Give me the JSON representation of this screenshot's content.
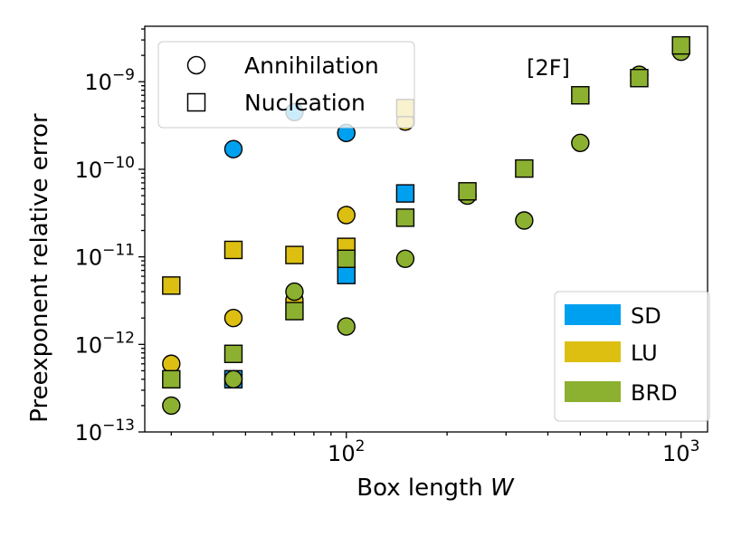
{
  "chart_data": {
    "type": "scatter",
    "title": "",
    "annotation": "[2F]",
    "xlabel": "Box length ",
    "xlabel_var": "W",
    "ylabel": "Preexponent relative error",
    "xscale": "log",
    "yscale": "log",
    "xlim": [
      25,
      1200
    ],
    "ylim": [
      1e-13,
      4.3e-09
    ],
    "x_ticks": [
      {
        "value": 100,
        "base": "10",
        "exp": "2"
      },
      {
        "value": 1000,
        "base": "10",
        "exp": "3"
      }
    ],
    "y_ticks": [
      {
        "value": 1e-13,
        "base": "10",
        "exp": "−13"
      },
      {
        "value": 1e-12,
        "base": "10",
        "exp": "−12"
      },
      {
        "value": 1e-11,
        "base": "10",
        "exp": "−11"
      },
      {
        "value": 1e-10,
        "base": "10",
        "exp": "−10"
      },
      {
        "value": 1e-09,
        "base": "10",
        "exp": "−9"
      }
    ],
    "marker_legend": [
      {
        "label": "Annihilation",
        "marker": "circle"
      },
      {
        "label": "Nucleation",
        "marker": "square"
      }
    ],
    "color_legend": [
      {
        "label": "SD",
        "color": "#00A0F0"
      },
      {
        "label": "LU",
        "color": "#DDBF12"
      },
      {
        "label": "BRD",
        "color": "#8CB030"
      }
    ],
    "series": [
      {
        "name": "SD",
        "color": "#00A0F0",
        "annihilation": [
          {
            "x": 46,
            "y": 1.7e-10
          },
          {
            "x": 70,
            "y": 4.5e-10
          },
          {
            "x": 100,
            "y": 2.6e-10
          }
        ],
        "nucleation": [
          {
            "x": 46,
            "y": 4e-13
          },
          {
            "x": 100,
            "y": 6.2e-12
          },
          {
            "x": 150,
            "y": 5.3e-11
          }
        ]
      },
      {
        "name": "LU",
        "color": "#DDBF12",
        "annihilation": [
          {
            "x": 30,
            "y": 6e-13
          },
          {
            "x": 46,
            "y": 2e-12
          },
          {
            "x": 70,
            "y": 3.2e-12
          },
          {
            "x": 100,
            "y": 3e-11
          },
          {
            "x": 150,
            "y": 3.5e-10
          }
        ],
        "nucleation": [
          {
            "x": 30,
            "y": 4.7e-12
          },
          {
            "x": 46,
            "y": 1.2e-11
          },
          {
            "x": 70,
            "y": 1.05e-11
          },
          {
            "x": 100,
            "y": 1.3e-11
          },
          {
            "x": 150,
            "y": 5e-10
          }
        ]
      },
      {
        "name": "BRD",
        "color": "#8CB030",
        "annihilation": [
          {
            "x": 30,
            "y": 2e-13
          },
          {
            "x": 46,
            "y": 4e-13
          },
          {
            "x": 70,
            "y": 4e-12
          },
          {
            "x": 100,
            "y": 1.6e-12
          },
          {
            "x": 150,
            "y": 9.5e-12
          },
          {
            "x": 230,
            "y": 5e-11
          },
          {
            "x": 340,
            "y": 2.6e-11
          },
          {
            "x": 500,
            "y": 2e-10
          },
          {
            "x": 750,
            "y": 1.2e-09
          },
          {
            "x": 1000,
            "y": 2.2e-09
          }
        ],
        "nucleation": [
          {
            "x": 30,
            "y": 4e-13
          },
          {
            "x": 46,
            "y": 7.8e-13
          },
          {
            "x": 70,
            "y": 2.4e-12
          },
          {
            "x": 100,
            "y": 9.5e-12
          },
          {
            "x": 150,
            "y": 2.8e-11
          },
          {
            "x": 230,
            "y": 5.6e-11
          },
          {
            "x": 340,
            "y": 1.02e-10
          },
          {
            "x": 500,
            "y": 7e-10
          },
          {
            "x": 750,
            "y": 1.1e-09
          },
          {
            "x": 1000,
            "y": 2.6e-09
          }
        ]
      }
    ]
  }
}
